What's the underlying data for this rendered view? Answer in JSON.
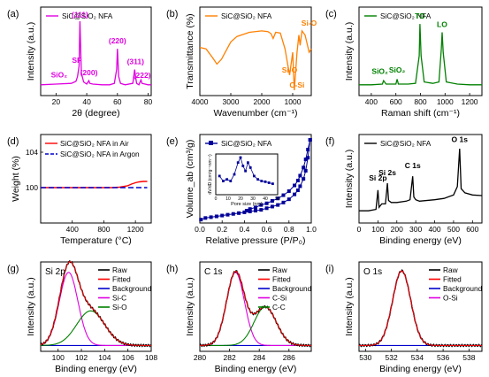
{
  "chart_data": [
    {
      "panel": "(a)",
      "type": "line",
      "legend": "SiC@SiO₂ NFA",
      "color": "#e000e0",
      "xlabel": "2θ (degree)",
      "ylabel": "Intensity (a.u.)",
      "xlim": [
        10,
        82
      ],
      "xticks": [
        "20",
        "40",
        "60",
        "80"
      ],
      "series": [
        {
          "x": [
            10,
            20,
            30,
            33,
            34,
            35,
            35.6,
            36.5,
            38,
            40,
            41.4,
            42,
            44,
            50,
            55,
            58,
            59.5,
            60,
            60.8,
            62,
            65,
            70,
            71.2,
            71.8,
            72.5,
            74,
            75.3,
            76,
            80,
            82
          ],
          "y": [
            0.08,
            0.09,
            0.1,
            0.13,
            0.2,
            0.35,
            1.0,
            0.25,
            0.12,
            0.09,
            0.14,
            0.1,
            0.09,
            0.08,
            0.08,
            0.1,
            0.3,
            0.6,
            0.2,
            0.1,
            0.08,
            0.1,
            0.3,
            0.2,
            0.1,
            0.08,
            0.15,
            0.1,
            0.08,
            0.08
          ]
        }
      ],
      "annotations": [
        {
          "text": "(111)",
          "x": 35.6,
          "y": 1.02
        },
        {
          "text": "SF",
          "x": 33.5,
          "y": 0.36
        },
        {
          "text": "SiO₂",
          "x": 22,
          "y": 0.15
        },
        {
          "text": "(200)",
          "x": 41.4,
          "y": 0.18
        },
        {
          "text": "(220)",
          "x": 60,
          "y": 0.64
        },
        {
          "text": "(311)",
          "x": 71.8,
          "y": 0.34
        },
        {
          "text": "(222)",
          "x": 76,
          "y": 0.14
        }
      ]
    },
    {
      "panel": "(b)",
      "type": "line",
      "legend": "SiC@SiO₂ NFA",
      "color": "#ff8000",
      "xlabel": "Wavenumber (cm⁻¹)",
      "ylabel": "Transmittance (%)",
      "xlim": [
        4000,
        400
      ],
      "xticks": [
        "4000",
        "3000",
        "2000",
        "1000"
      ],
      "series": [
        {
          "x": [
            4000,
            3800,
            3600,
            3450,
            3300,
            3000,
            2800,
            2400,
            2000,
            1800,
            1700,
            1630,
            1550,
            1400,
            1250,
            1100,
            1000,
            950,
            860,
            800,
            760,
            700,
            600,
            470,
            400
          ],
          "y": [
            0.62,
            0.6,
            0.48,
            0.38,
            0.45,
            0.7,
            0.78,
            0.84,
            0.86,
            0.85,
            0.82,
            0.75,
            0.84,
            0.83,
            0.6,
            0.22,
            0.55,
            0.0,
            0.55,
            0.8,
            0.65,
            0.86,
            0.8,
            0.55,
            0.6
          ]
        }
      ],
      "annotations": [
        {
          "text": "Si-O",
          "x": 1100,
          "y": 0.22
        },
        {
          "text": "C-Si",
          "x": 860,
          "y": 0.0
        },
        {
          "text": "Si-O",
          "x": 470,
          "y": 0.9
        }
      ]
    },
    {
      "panel": "(c)",
      "type": "line",
      "legend": "SiC@SiO₂ NFA",
      "color": "#008000",
      "xlabel": "Raman shift (cm⁻¹)",
      "ylabel": "Intensity (a.u.)",
      "xlim": [
        300,
        1300
      ],
      "xticks": [
        "400",
        "600",
        "800",
        "1000",
        "1200"
      ],
      "series": [
        {
          "x": [
            300,
            400,
            490,
            500,
            520,
            600,
            610,
            620,
            700,
            760,
            790,
            796,
            805,
            830,
            900,
            950,
            970,
            976,
            985,
            1010,
            1100,
            1200,
            1300
          ],
          "y": [
            0.08,
            0.08,
            0.09,
            0.14,
            0.09,
            0.09,
            0.16,
            0.09,
            0.09,
            0.1,
            0.5,
            0.96,
            0.5,
            0.12,
            0.1,
            0.12,
            0.6,
            0.84,
            0.55,
            0.12,
            0.09,
            0.08,
            0.08
          ]
        }
      ],
      "annotations": [
        {
          "text": "SiO₂",
          "x": 470,
          "y": 0.2
        },
        {
          "text": "SiO₂",
          "x": 610,
          "y": 0.22
        },
        {
          "text": "TO",
          "x": 796,
          "y": 1.0
        },
        {
          "text": "LO",
          "x": 976,
          "y": 0.88
        }
      ]
    },
    {
      "panel": "(d)",
      "type": "line",
      "xlabel": "Temperature (°C)",
      "ylabel": "Weight (%)",
      "xlim": [
        0,
        1400
      ],
      "ylim": [
        96,
        106
      ],
      "xticks": [
        "400",
        "800",
        "1200"
      ],
      "yticks": [
        "100",
        "104"
      ],
      "series": [
        {
          "name": "SiC@SiO₂ NFA in Air",
          "color": "#ff0000",
          "style": "solid",
          "x": [
            0,
            900,
            1000,
            1100,
            1150,
            1200,
            1250,
            1300,
            1350
          ],
          "y": [
            100,
            100,
            100.05,
            100.2,
            100.4,
            100.55,
            100.65,
            100.7,
            100.7
          ]
        },
        {
          "name": "SiC@SiO₂ NFA in Argon",
          "color": "#0000cc",
          "style": "dashed",
          "x": [
            0,
            1350
          ],
          "y": [
            100,
            100
          ]
        }
      ]
    },
    {
      "panel": "(e)",
      "type": "line",
      "legend": "SiC@SiO₂ NFA",
      "color": "#000099",
      "xlabel": "Relative pressure (P/P₀)",
      "ylabel": "Volume_ab (cm³/g)",
      "xlim": [
        0,
        1.0
      ],
      "xticks": [
        "0.0",
        "0.2",
        "0.4",
        "0.6",
        "0.8",
        "1.0"
      ],
      "series": [
        {
          "name": "adsorption",
          "x": [
            0.01,
            0.05,
            0.1,
            0.15,
            0.2,
            0.25,
            0.3,
            0.35,
            0.4,
            0.45,
            0.5,
            0.55,
            0.6,
            0.65,
            0.7,
            0.75,
            0.8,
            0.85,
            0.88,
            0.9,
            0.93,
            0.95,
            0.97,
            0.99
          ],
          "y": [
            0.02,
            0.04,
            0.05,
            0.06,
            0.07,
            0.08,
            0.09,
            0.1,
            0.11,
            0.12,
            0.13,
            0.14,
            0.16,
            0.18,
            0.2,
            0.23,
            0.27,
            0.33,
            0.38,
            0.43,
            0.52,
            0.62,
            0.78,
            1.0
          ]
        },
        {
          "name": "desorption",
          "x": [
            0.99,
            0.97,
            0.95,
            0.93,
            0.9,
            0.88,
            0.85,
            0.8,
            0.75,
            0.7,
            0.65,
            0.6,
            0.55,
            0.5,
            0.45,
            0.42
          ],
          "y": [
            1.0,
            0.88,
            0.76,
            0.66,
            0.56,
            0.5,
            0.44,
            0.37,
            0.32,
            0.28,
            0.25,
            0.22,
            0.2,
            0.17,
            0.15,
            0.13
          ]
        }
      ],
      "inset": {
        "xlabel": "Pore size (nm)",
        "ylabel": "dV/dD (cm³g⁻¹nm⁻¹)",
        "xlim": [
          0,
          50
        ],
        "xticks": [
          "0",
          "10",
          "20",
          "30",
          "40",
          "50"
        ],
        "x": [
          3,
          6,
          9,
          12,
          15,
          18,
          20,
          22,
          24,
          26,
          28,
          31,
          34,
          37,
          40,
          43,
          46
        ],
        "y": [
          0.45,
          0.3,
          0.35,
          0.3,
          0.5,
          0.85,
          1.0,
          0.75,
          0.6,
          0.85,
          0.7,
          0.45,
          0.35,
          0.3,
          0.28,
          0.25,
          0.22
        ]
      }
    },
    {
      "panel": "(f)",
      "type": "line",
      "legend": "SiC@SiO₂ NFA",
      "color": "#000000",
      "xlabel": "Binding energy (eV)",
      "ylabel": "Intensity (a.u.)",
      "xlim": [
        0,
        650
      ],
      "xticks": [
        "0",
        "100",
        "200",
        "300",
        "400",
        "500",
        "600"
      ],
      "series": [
        {
          "x": [
            0,
            50,
            90,
            100,
            106,
            120,
            140,
            150,
            156,
            170,
            200,
            250,
            270,
            284,
            290,
            300,
            320,
            400,
            450,
            500,
            520,
            532,
            540,
            560,
            600,
            650
          ],
          "y": [
            0.1,
            0.1,
            0.12,
            0.4,
            0.15,
            0.2,
            0.2,
            0.5,
            0.25,
            0.22,
            0.22,
            0.24,
            0.26,
            0.6,
            0.3,
            0.26,
            0.24,
            0.26,
            0.28,
            0.33,
            0.45,
            1.0,
            0.42,
            0.36,
            0.33,
            0.32
          ]
        }
      ],
      "annotations": [
        {
          "text": "Si 2p",
          "x": 100,
          "y": 0.5
        },
        {
          "text": "Si 2s",
          "x": 150,
          "y": 0.58
        },
        {
          "text": "C 1s",
          "x": 284,
          "y": 0.68
        },
        {
          "text": "O 1s",
          "x": 532,
          "y": 1.06
        }
      ]
    },
    {
      "panel": "(g)",
      "type": "line",
      "core": "Si 2p",
      "xlabel": "Binding energy (eV)",
      "ylabel": "Intensity (a.u.)",
      "xlim": [
        98.5,
        108
      ],
      "xticks": [
        "100",
        "102",
        "104",
        "106",
        "108"
      ],
      "components": [
        {
          "name": "Si-C",
          "color": "#e000e0",
          "center": 100.9,
          "height": 0.95,
          "width": 0.8
        },
        {
          "name": "Si-O",
          "color": "#008000",
          "center": 102.8,
          "height": 0.45,
          "width": 1.2
        }
      ],
      "background": 0.03,
      "legend": [
        {
          "name": "Raw",
          "color": "#000000"
        },
        {
          "name": "Fitted",
          "color": "#ff0000"
        },
        {
          "name": "Background",
          "color": "#0000cc"
        },
        {
          "name": "Si-C",
          "color": "#e000e0"
        },
        {
          "name": "Si-O",
          "color": "#008000"
        }
      ]
    },
    {
      "panel": "(h)",
      "type": "line",
      "core": "C 1s",
      "xlabel": "Binding energy (eV)",
      "ylabel": "Intensity (a.u.)",
      "xlim": [
        280,
        287.5
      ],
      "xticks": [
        "280",
        "282",
        "284",
        "286"
      ],
      "components": [
        {
          "name": "C-Si",
          "color": "#e000e0",
          "center": 282.4,
          "height": 0.95,
          "width": 0.6
        },
        {
          "name": "C-C",
          "color": "#008000",
          "center": 284.4,
          "height": 0.5,
          "width": 0.75
        }
      ],
      "background": 0.03,
      "legend": [
        {
          "name": "Raw",
          "color": "#000000"
        },
        {
          "name": "Fitted",
          "color": "#ff0000"
        },
        {
          "name": "Background",
          "color": "#0000cc"
        },
        {
          "name": "C-Si",
          "color": "#e000e0"
        },
        {
          "name": "C-C",
          "color": "#008000"
        }
      ]
    },
    {
      "panel": "(i)",
      "type": "line",
      "core": "O 1s",
      "xlabel": "Binding energy (eV)",
      "ylabel": "Intensity (a.u.)",
      "xlim": [
        529.5,
        539
      ],
      "xticks": [
        "530",
        "532",
        "534",
        "536",
        "538"
      ],
      "components": [
        {
          "name": "O-Si",
          "color": "#e000e0",
          "center": 532.8,
          "height": 0.97,
          "width": 0.7
        }
      ],
      "background": 0.03,
      "legend": [
        {
          "name": "Raw",
          "color": "#000000"
        },
        {
          "name": "Fitted",
          "color": "#ff0000"
        },
        {
          "name": "Background",
          "color": "#0000cc"
        },
        {
          "name": "O-Si",
          "color": "#e000e0"
        }
      ]
    }
  ]
}
